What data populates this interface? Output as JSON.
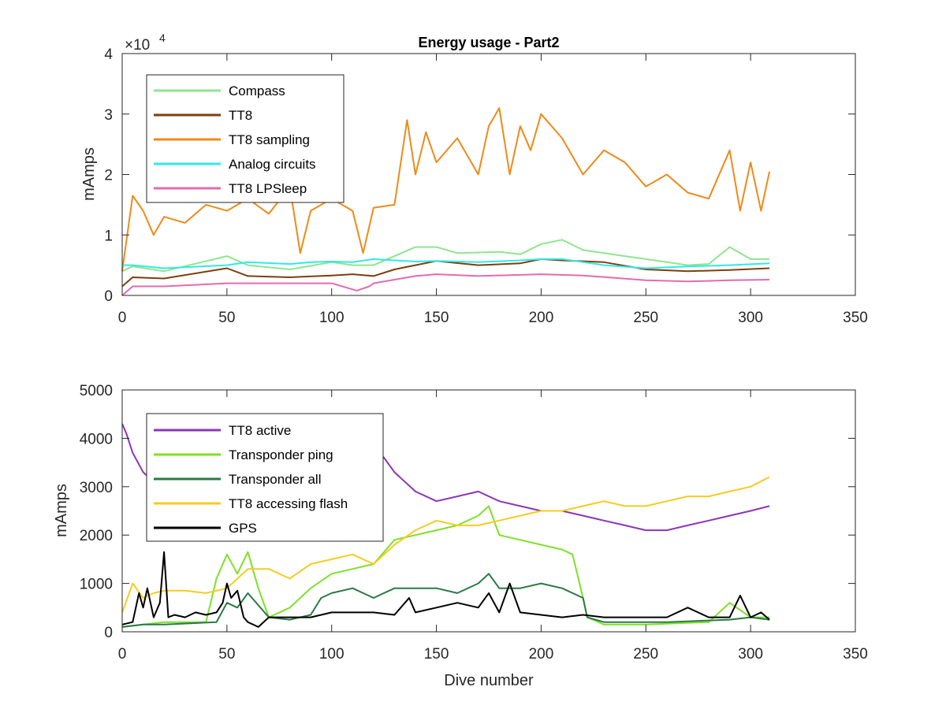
{
  "chart_data": [
    {
      "type": "line",
      "title": "Energy usage - Part2",
      "xlabel": "",
      "ylabel": "mAmps",
      "xlim": [
        0,
        350
      ],
      "ylim": [
        0,
        40000
      ],
      "y_exponent_label": "×10",
      "y_exponent_power": "4",
      "xticks": [
        "0",
        "50",
        "100",
        "150",
        "200",
        "250",
        "300",
        "350"
      ],
      "yticks": [
        "0",
        "1",
        "2",
        "3",
        "4"
      ],
      "grid": false,
      "legend_position": "top-left",
      "series": [
        {
          "name": "Compass",
          "color": "#8EE68E",
          "x": [
            0,
            5,
            20,
            50,
            60,
            80,
            100,
            110,
            120,
            140,
            150,
            160,
            180,
            190,
            200,
            210,
            220,
            240,
            250,
            260,
            270,
            280,
            290,
            300,
            309
          ],
          "y": [
            4000,
            4800,
            4000,
            6500,
            5000,
            4300,
            5500,
            5000,
            5000,
            8000,
            8000,
            7000,
            7200,
            6800,
            8500,
            9200,
            7500,
            6500,
            6000,
            5500,
            5000,
            5200,
            8000,
            6000,
            6000
          ]
        },
        {
          "name": "TT8",
          "color": "#7B3F0F",
          "x": [
            0,
            5,
            20,
            50,
            60,
            80,
            100,
            110,
            120,
            130,
            140,
            150,
            170,
            190,
            200,
            210,
            230,
            250,
            270,
            290,
            309
          ],
          "y": [
            1500,
            3000,
            2800,
            4500,
            3200,
            3000,
            3300,
            3500,
            3200,
            4300,
            5000,
            5700,
            5000,
            5300,
            6000,
            5800,
            5500,
            4300,
            4000,
            4200,
            4500
          ]
        },
        {
          "name": "TT8 sampling",
          "color": "#EE8A19",
          "x": [
            0,
            5,
            10,
            15,
            20,
            30,
            40,
            50,
            60,
            70,
            80,
            85,
            90,
            100,
            110,
            115,
            120,
            130,
            136,
            140,
            145,
            150,
            160,
            170,
            175,
            180,
            185,
            190,
            195,
            200,
            210,
            220,
            230,
            240,
            250,
            260,
            270,
            280,
            290,
            295,
            300,
            305,
            309
          ],
          "y": [
            4000,
            16500,
            14000,
            10000,
            13000,
            12000,
            15000,
            14000,
            16000,
            13500,
            18000,
            7000,
            14000,
            16000,
            14000,
            7000,
            14500,
            15000,
            29000,
            20000,
            27000,
            22000,
            26000,
            20000,
            28000,
            31000,
            20000,
            28000,
            24000,
            30000,
            26000,
            20000,
            24000,
            22000,
            18000,
            20000,
            17000,
            16000,
            24000,
            14000,
            22000,
            14000,
            20500
          ]
        },
        {
          "name": "Analog circuits",
          "color": "#33E8E8",
          "x": [
            0,
            5,
            20,
            50,
            60,
            80,
            90,
            100,
            110,
            120,
            140,
            150,
            170,
            190,
            200,
            210,
            230,
            250,
            270,
            290,
            309
          ],
          "y": [
            5000,
            5000,
            4500,
            5000,
            5500,
            5200,
            5500,
            5600,
            5500,
            6000,
            5600,
            5700,
            5500,
            5800,
            6000,
            6000,
            5000,
            4500,
            4800,
            5000,
            5300
          ]
        },
        {
          "name": "TT8 LPSleep",
          "color": "#E26BB0",
          "x": [
            0,
            5,
            20,
            50,
            80,
            100,
            112,
            118,
            120,
            140,
            150,
            170,
            200,
            220,
            250,
            270,
            290,
            309
          ],
          "y": [
            0,
            1500,
            1500,
            2000,
            2000,
            2000,
            800,
            1500,
            2000,
            3200,
            3500,
            3200,
            3500,
            3300,
            2500,
            2300,
            2500,
            2600
          ]
        }
      ]
    },
    {
      "type": "line",
      "title": "",
      "xlabel": "Dive number",
      "ylabel": "mAmps",
      "xlim": [
        0,
        350
      ],
      "ylim": [
        0,
        5000
      ],
      "xticks": [
        "0",
        "50",
        "100",
        "150",
        "200",
        "250",
        "300",
        "350"
      ],
      "yticks": [
        "0",
        "1000",
        "2000",
        "3000",
        "4000",
        "5000"
      ],
      "grid": false,
      "legend_position": "top-left",
      "series": [
        {
          "name": "TT8 active",
          "color": "#8B35B7",
          "x": [
            0,
            2,
            5,
            10,
            15,
            20,
            25,
            30,
            120,
            125,
            130,
            135,
            140,
            150,
            160,
            170,
            180,
            190,
            200,
            210,
            220,
            230,
            240,
            250,
            260,
            270,
            280,
            290,
            300,
            309
          ],
          "y": [
            4300,
            4100,
            3700,
            3300,
            3100,
            3300,
            3200,
            3300,
            3800,
            3600,
            3300,
            3100,
            2900,
            2700,
            2800,
            2900,
            2700,
            2600,
            2500,
            2500,
            2400,
            2300,
            2200,
            2100,
            2100,
            2200,
            2300,
            2400,
            2500,
            2600
          ]
        },
        {
          "name": "Transponder ping",
          "color": "#7FE027",
          "x": [
            0,
            10,
            20,
            40,
            45,
            50,
            55,
            60,
            65,
            70,
            80,
            90,
            100,
            110,
            120,
            130,
            140,
            150,
            160,
            170,
            175,
            180,
            190,
            200,
            210,
            215,
            220,
            222,
            230,
            250,
            280,
            290,
            300,
            309
          ],
          "y": [
            100,
            150,
            200,
            200,
            1100,
            1600,
            1200,
            1650,
            900,
            300,
            500,
            900,
            1200,
            1300,
            1400,
            1900,
            2000,
            2100,
            2200,
            2400,
            2600,
            2000,
            1900,
            1800,
            1700,
            1600,
            700,
            300,
            150,
            150,
            200,
            600,
            300,
            300
          ]
        },
        {
          "name": "Transponder all",
          "color": "#2A7A45",
          "x": [
            0,
            10,
            20,
            45,
            50,
            55,
            60,
            70,
            80,
            90,
            95,
            100,
            110,
            120,
            130,
            140,
            150,
            160,
            170,
            175,
            180,
            190,
            200,
            210,
            220,
            222,
            230,
            260,
            290,
            300,
            309
          ],
          "y": [
            100,
            150,
            150,
            200,
            600,
            500,
            800,
            300,
            250,
            350,
            700,
            800,
            900,
            700,
            900,
            900,
            900,
            800,
            1000,
            1200,
            900,
            900,
            1000,
            900,
            700,
            300,
            200,
            200,
            250,
            300,
            250
          ]
        },
        {
          "name": "TT8 accessing flash",
          "color": "#F5CC20",
          "x": [
            0,
            5,
            10,
            15,
            20,
            30,
            40,
            50,
            60,
            70,
            80,
            90,
            100,
            110,
            120,
            130,
            140,
            150,
            160,
            170,
            180,
            190,
            200,
            210,
            220,
            230,
            240,
            250,
            260,
            270,
            280,
            290,
            300,
            309
          ],
          "y": [
            400,
            1000,
            700,
            800,
            850,
            850,
            800,
            900,
            1300,
            1300,
            1100,
            1400,
            1500,
            1600,
            1400,
            1800,
            2100,
            2300,
            2200,
            2200,
            2300,
            2400,
            2500,
            2500,
            2600,
            2700,
            2600,
            2600,
            2700,
            2800,
            2800,
            2900,
            3000,
            3200
          ]
        },
        {
          "name": "GPS",
          "color": "#000000",
          "x": [
            0,
            5,
            8,
            10,
            12,
            15,
            18,
            20,
            22,
            25,
            30,
            35,
            40,
            45,
            48,
            50,
            52,
            55,
            58,
            60,
            65,
            70,
            80,
            90,
            100,
            110,
            120,
            130,
            137,
            140,
            150,
            160,
            170,
            175,
            180,
            185,
            190,
            200,
            210,
            220,
            230,
            240,
            250,
            260,
            270,
            280,
            290,
            295,
            300,
            305,
            309
          ],
          "y": [
            150,
            200,
            800,
            500,
            900,
            300,
            600,
            1650,
            300,
            350,
            300,
            400,
            350,
            400,
            600,
            1000,
            700,
            850,
            300,
            200,
            100,
            300,
            300,
            300,
            400,
            400,
            400,
            350,
            700,
            400,
            500,
            600,
            500,
            800,
            400,
            1000,
            400,
            350,
            300,
            350,
            300,
            300,
            300,
            300,
            500,
            300,
            300,
            750,
            300,
            400,
            250
          ]
        }
      ]
    }
  ]
}
